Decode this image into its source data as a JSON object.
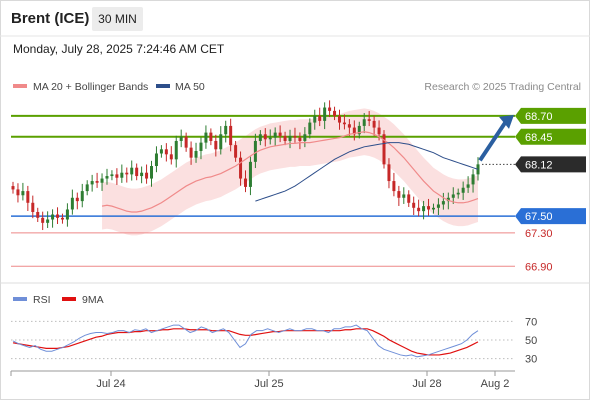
{
  "header": {
    "title": "Brent (ICE)",
    "timeframe": "30 MIN"
  },
  "datetime": "Monday, July 28, 2025 7:24:46 AM CET",
  "colors": {
    "up": "#2e7d32",
    "down": "#c62828",
    "support": "#2a6fd6",
    "resistance": "#5aa000",
    "target_arrow": "#2b5fa0",
    "ma20": "#f08a8a",
    "ma50": "#2d4e8a",
    "rsi": "#6f8fd8",
    "rsi_ma": "#e01010"
  },
  "chart_data": [
    {
      "type": "candlestick",
      "legend": [
        {
          "name": "MA 20 + Bollinger Bands",
          "color": "#f08a8a"
        },
        {
          "name": "MA 50",
          "color": "#2d4e8a"
        }
      ],
      "watermark": "Research © 2025 Trading Central",
      "x_labels": [
        "Jul 24",
        "Jul 25",
        "Jul 28",
        "Aug 2"
      ],
      "ylim": [
        66.7,
        68.95
      ],
      "levels": [
        {
          "value": 68.7,
          "label": "68.70",
          "kind": "resistance"
        },
        {
          "value": 68.45,
          "label": "68.45",
          "kind": "resistance"
        },
        {
          "value": 68.12,
          "label": "68.12",
          "kind": "last"
        },
        {
          "value": 67.5,
          "label": "67.50",
          "kind": "support"
        },
        {
          "value": 67.3,
          "label": "67.30",
          "kind": "support-minor"
        },
        {
          "value": 66.9,
          "label": "66.90",
          "kind": "support-minor"
        }
      ],
      "closes": [
        67.82,
        67.75,
        67.8,
        67.66,
        67.55,
        67.48,
        67.42,
        67.46,
        67.52,
        67.48,
        67.46,
        67.58,
        67.72,
        67.68,
        67.8,
        67.88,
        67.92,
        67.9,
        67.95,
        67.98,
        68.0,
        67.96,
        68.02,
        68.0,
        68.08,
        67.98,
        68.02,
        67.95,
        68.1,
        68.25,
        68.3,
        68.24,
        68.18,
        68.4,
        68.45,
        68.32,
        68.2,
        68.28,
        68.38,
        68.5,
        68.4,
        68.3,
        68.48,
        68.58,
        68.35,
        68.2,
        67.95,
        67.85,
        68.15,
        68.4,
        68.48,
        68.42,
        68.44,
        68.5,
        68.46,
        68.4,
        68.46,
        68.44,
        68.4,
        68.48,
        68.62,
        68.7,
        68.64,
        68.8,
        68.76,
        68.7,
        68.62,
        68.6,
        68.56,
        68.48,
        68.58,
        68.66,
        68.64,
        68.56,
        68.48,
        68.12,
        67.92,
        67.8,
        67.72,
        67.76,
        67.66,
        67.6,
        67.56,
        67.62,
        67.58,
        67.6,
        67.64,
        67.68,
        67.72,
        67.76,
        67.78,
        67.84,
        67.88,
        68.0,
        68.12
      ],
      "ma20": [
        67.62,
        67.63,
        67.62,
        67.6,
        67.58,
        67.56,
        67.55,
        67.55,
        67.56,
        67.58,
        67.6,
        67.63,
        67.66,
        67.7,
        67.74,
        67.78,
        67.82,
        67.86,
        67.89,
        67.92,
        67.94,
        67.96,
        67.97,
        67.99,
        68.01,
        68.04,
        68.07,
        68.1,
        68.14,
        68.18,
        68.22,
        68.26,
        68.29,
        68.31,
        68.33,
        68.34,
        68.35,
        68.36,
        68.37,
        68.37,
        68.38,
        68.38,
        68.38,
        68.39,
        68.4,
        68.41,
        68.42,
        68.43,
        68.44,
        68.46,
        68.48,
        68.49,
        68.5,
        68.51,
        68.5,
        68.48,
        68.45,
        68.41,
        68.37,
        68.32,
        68.26,
        68.2,
        68.13,
        68.06,
        67.99,
        67.92,
        67.86,
        67.8,
        67.76,
        67.72,
        67.69,
        67.67,
        67.66,
        67.66,
        67.67,
        67.69,
        67.71
      ],
      "ma20_start": 18,
      "ma50": [
        67.68,
        67.7,
        67.72,
        67.74,
        67.76,
        67.78,
        67.8,
        67.83,
        67.86,
        67.9,
        67.94,
        67.98,
        68.02,
        68.06,
        68.1,
        68.14,
        68.18,
        68.21,
        68.24,
        68.27,
        68.29,
        68.31,
        68.33,
        68.34,
        68.35,
        68.36,
        68.37,
        68.38,
        68.38,
        68.38,
        68.37,
        68.36,
        68.34,
        68.32,
        68.3,
        68.28,
        68.26,
        68.23,
        68.2,
        68.18,
        68.16,
        68.14,
        68.12,
        68.1,
        68.08,
        68.06
      ],
      "ma50_start": 49
    },
    {
      "type": "line",
      "legend": [
        {
          "name": "RSI",
          "color": "#6f8fd8"
        },
        {
          "name": "9MA",
          "color": "#e01010"
        }
      ],
      "ylim": [
        20,
        80
      ],
      "y_ticks": [
        70,
        50,
        30
      ],
      "rsi": [
        49,
        46,
        44,
        42,
        44,
        40,
        38,
        38,
        40,
        42,
        45,
        48,
        52,
        55,
        57,
        58,
        58,
        57,
        58,
        60,
        60,
        58,
        61,
        60,
        62,
        58,
        60,
        62,
        64,
        66,
        66,
        62,
        58,
        60,
        64,
        62,
        58,
        60,
        62,
        58,
        50,
        42,
        46,
        56,
        60,
        60,
        62,
        60,
        58,
        60,
        62,
        60,
        60,
        62,
        62,
        60,
        60,
        58,
        62,
        62,
        64,
        64,
        66,
        62,
        60,
        52,
        44,
        40,
        38,
        36,
        34,
        33,
        34,
        32,
        33,
        34,
        36,
        38,
        40,
        42,
        44,
        46,
        50,
        56,
        60
      ],
      "rsi_ma": [
        47,
        46,
        45,
        44,
        43,
        42,
        41,
        41,
        41,
        42,
        43,
        45,
        47,
        49,
        51,
        53,
        54,
        56,
        57,
        58,
        58,
        58,
        59,
        59,
        60,
        60,
        60,
        61,
        61,
        62,
        62,
        62,
        61,
        61,
        61,
        61,
        60,
        60,
        60,
        60,
        58,
        56,
        55,
        55,
        56,
        57,
        58,
        59,
        59,
        60,
        60,
        60,
        60,
        60,
        60,
        60,
        60,
        60,
        60,
        60,
        61,
        61,
        62,
        62,
        62,
        60,
        57,
        54,
        50,
        47,
        44,
        41,
        38,
        36,
        35,
        34,
        34,
        34,
        35,
        36,
        38,
        40,
        42,
        45,
        48
      ]
    }
  ]
}
